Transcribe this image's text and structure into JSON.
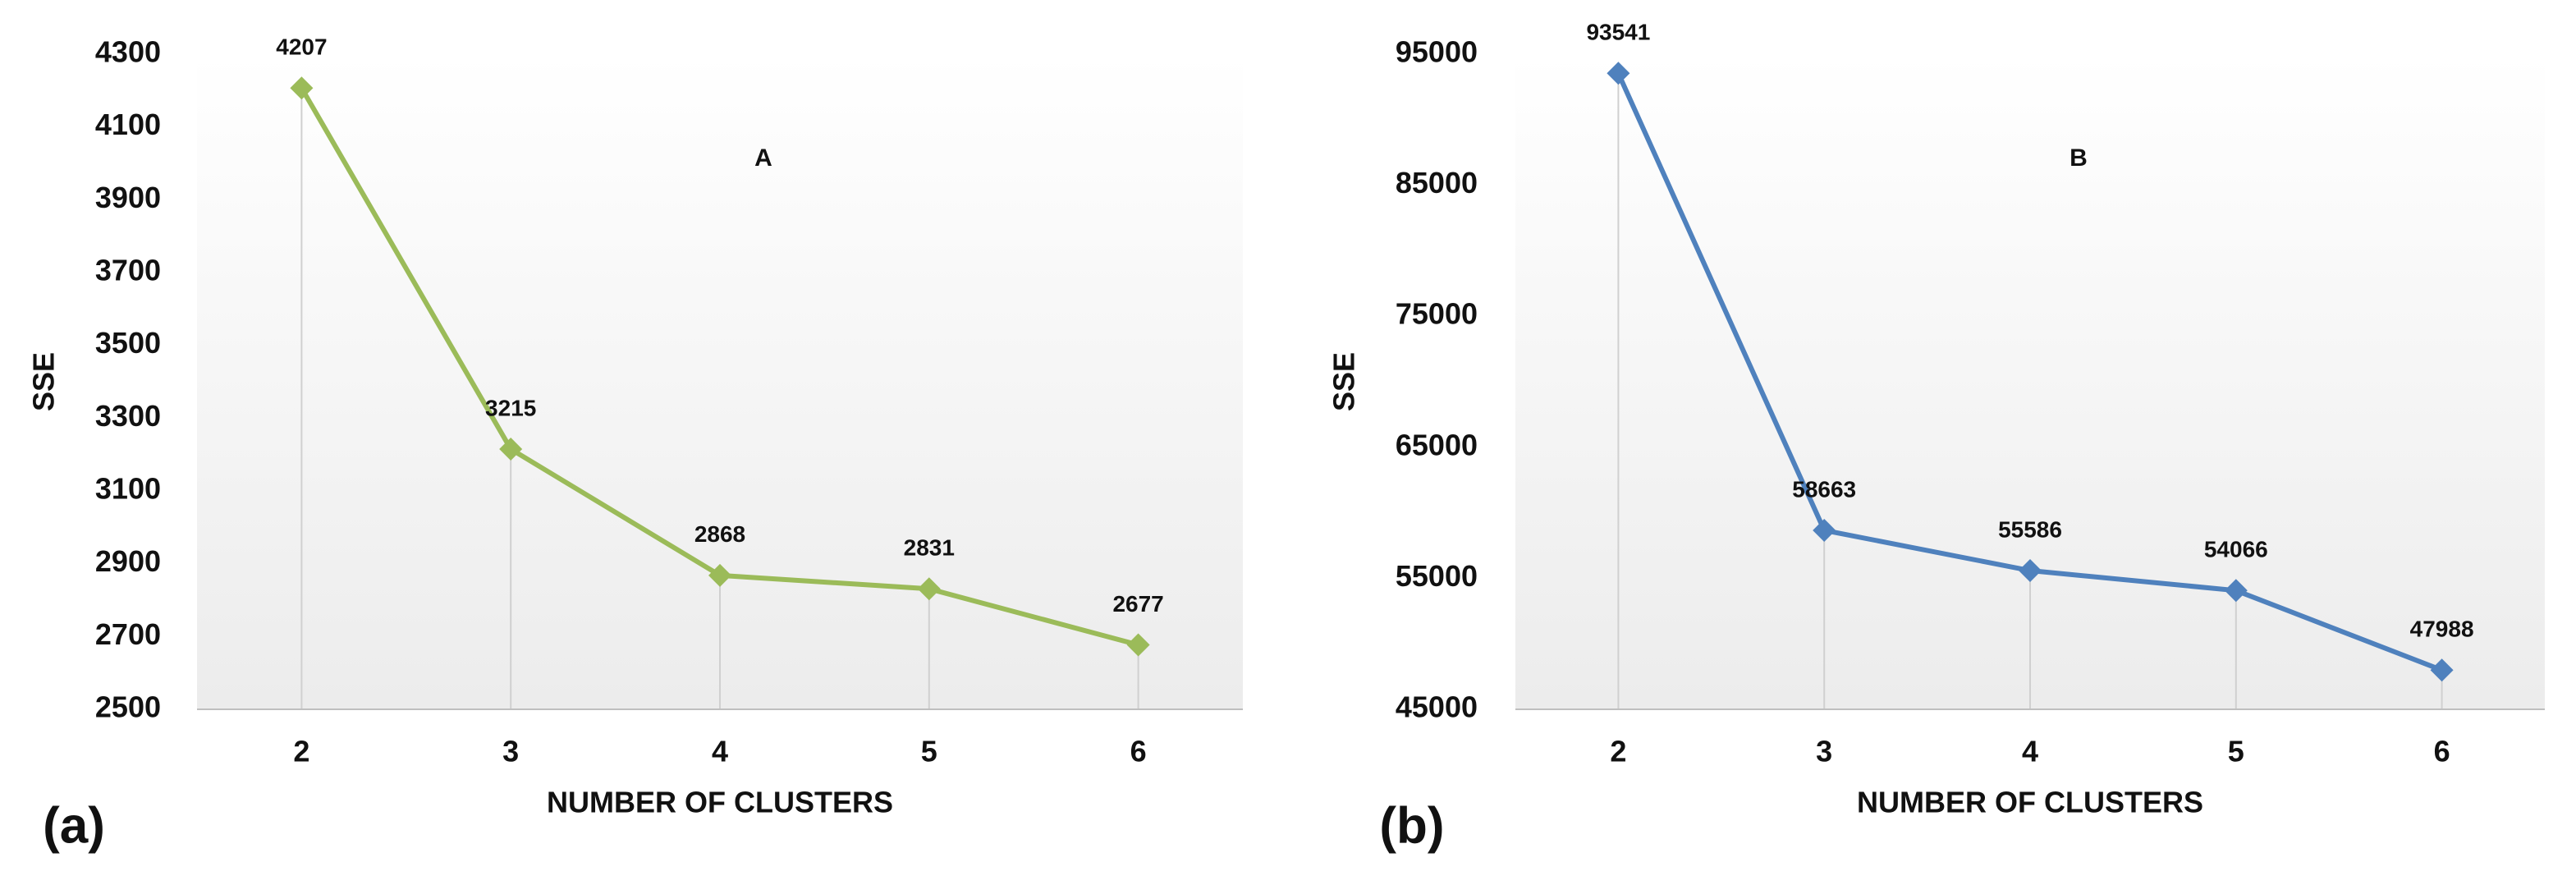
{
  "chart_data": [
    {
      "type": "line",
      "title": "A",
      "panel_label": "(a)",
      "x_label": "NUMBER OF CLUSTERS",
      "y_label": "SSE",
      "categories": [
        "2",
        "3",
        "4",
        "5",
        "6"
      ],
      "values": [
        4207,
        3215,
        2868,
        2831,
        2677
      ],
      "color": "#9bbb59",
      "ylim": [
        2500,
        4300
      ],
      "yticks": [
        2500,
        2700,
        2900,
        3100,
        3300,
        3500,
        3700,
        3900,
        4100,
        4300
      ]
    },
    {
      "type": "line",
      "title": "B",
      "panel_label": "(b)",
      "x_label": "NUMBER OF CLUSTERS",
      "y_label": "SSE",
      "categories": [
        "2",
        "3",
        "4",
        "5",
        "6"
      ],
      "values": [
        93541,
        58663,
        55586,
        54066,
        47988
      ],
      "color": "#4f81bd",
      "ylim": [
        45000,
        95000
      ],
      "yticks": [
        45000,
        55000,
        65000,
        75000,
        85000,
        95000
      ]
    }
  ]
}
